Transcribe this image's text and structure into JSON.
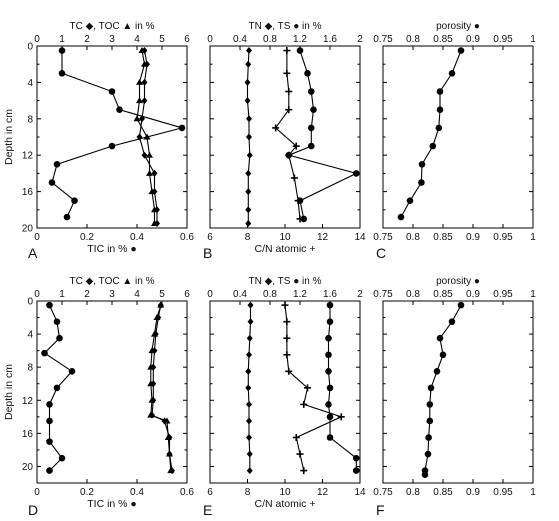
{
  "chart_data": [
    {
      "panel": "A",
      "type": "line",
      "top_label": "TC ◆, TOC ▲ in %",
      "top_axis": {
        "min": 0,
        "max": 6,
        "ticks": [
          "0",
          "1",
          "2",
          "3",
          "4",
          "5",
          "6"
        ]
      },
      "bottom_axis": {
        "min": 0,
        "max": 0.6,
        "ticks": [
          "0",
          "0.2",
          "0.4",
          "0.6"
        ],
        "label": "TIC in % ●"
      },
      "ylabel": "Depth in cm",
      "y_axis": {
        "min": 0,
        "max": 20,
        "ticks": [
          "0",
          "4",
          "8",
          "12",
          "16",
          "20"
        ],
        "inverted": true
      },
      "series": [
        {
          "name": "TC",
          "marker": "diamond",
          "axis": "top",
          "x": [
            4.3,
            4.4,
            4.3,
            4.3,
            4.2,
            4.1,
            4.3,
            4.7,
            4.7,
            4.8,
            4.8
          ],
          "y": [
            0.5,
            2,
            4,
            6,
            8,
            10,
            12,
            14,
            16,
            18,
            19.5
          ]
        },
        {
          "name": "TOC",
          "marker": "triangle",
          "axis": "top",
          "x": [
            4.2,
            4.3,
            4.1,
            4.1,
            4.0,
            4.4,
            4.5,
            4.5,
            4.6,
            4.7,
            4.7
          ],
          "y": [
            0.5,
            2,
            4,
            6,
            8,
            10,
            12,
            14,
            16,
            18,
            19.5
          ]
        },
        {
          "name": "TIC",
          "marker": "circle",
          "axis": "bottom",
          "x": [
            0.1,
            0.1,
            0.3,
            0.33,
            0.58,
            0.3,
            0.08,
            0.06,
            0.15,
            0.12
          ],
          "y": [
            0.5,
            3,
            5,
            7,
            9,
            11,
            13,
            15,
            17,
            18.8
          ]
        }
      ]
    },
    {
      "panel": "B",
      "type": "line",
      "top_label": "TN ◆, TS ● in %",
      "top_axis": {
        "min": 0,
        "max": 2,
        "ticks": [
          "0",
          "0.4",
          "0.8",
          "1.2",
          "1.6",
          "2"
        ]
      },
      "bottom_axis": {
        "min": 6,
        "max": 14,
        "ticks": [
          "6",
          "8",
          "10",
          "12",
          "14"
        ],
        "label": "C/N atomic +"
      },
      "y_axis": {
        "min": 0,
        "max": 20,
        "inverted": true
      },
      "series": [
        {
          "name": "TN",
          "marker": "diamond",
          "axis": "top",
          "x": [
            0.52,
            0.51,
            0.5,
            0.5,
            0.52,
            0.52,
            0.53,
            0.51,
            0.51,
            0.51,
            0.51
          ],
          "y": [
            0.5,
            2,
            4,
            6,
            8,
            10,
            12,
            14,
            16,
            18,
            19.5
          ]
        },
        {
          "name": "TS",
          "marker": "circle",
          "axis": "top",
          "x": [
            1.2,
            1.3,
            1.35,
            1.38,
            1.35,
            1.35,
            1.05,
            1.95,
            1.2,
            1.25
          ],
          "y": [
            0.5,
            3,
            5,
            7,
            9,
            11,
            12,
            14,
            17,
            19
          ]
        },
        {
          "name": "C/N",
          "marker": "plus",
          "axis": "bottom",
          "x": [
            10.1,
            10.1,
            10.2,
            10.2,
            9.5,
            10.6,
            10.2,
            10.5,
            10.7,
            10.8
          ],
          "y": [
            0.5,
            3,
            5,
            7,
            9,
            11,
            12,
            14.5,
            17,
            19
          ]
        }
      ]
    },
    {
      "panel": "C",
      "type": "line",
      "top_label": "porosity ●",
      "bottom_axis": {
        "min": 0.75,
        "max": 1,
        "ticks": [
          "0.75",
          "0.8",
          "0.85",
          "0.9",
          "0.95",
          "1"
        ]
      },
      "y_axis": {
        "min": 0,
        "max": 20,
        "inverted": true
      },
      "series": [
        {
          "name": "porosity",
          "marker": "circle",
          "axis": "bottom",
          "x": [
            0.88,
            0.865,
            0.845,
            0.845,
            0.843,
            0.833,
            0.815,
            0.814,
            0.795,
            0.78
          ],
          "y": [
            0.5,
            3,
            5,
            7,
            9,
            11,
            13,
            15,
            17,
            18.8
          ]
        }
      ]
    },
    {
      "panel": "D",
      "type": "line",
      "top_label": "TC ◆, TOC ▲ in %",
      "top_axis": {
        "min": 0,
        "max": 6,
        "ticks": [
          "0",
          "1",
          "2",
          "3",
          "4",
          "5",
          "6"
        ]
      },
      "bottom_axis": {
        "min": 0,
        "max": 0.6,
        "ticks": [
          "0",
          "0.2",
          "0.4",
          "0.6"
        ],
        "label": "TIC in % ●"
      },
      "ylabel": "Depth in cm",
      "y_axis": {
        "min": 0,
        "max": 22,
        "ticks": [
          "0",
          "4",
          "8",
          "12",
          "16",
          "20"
        ],
        "inverted": true
      },
      "series": [
        {
          "name": "TC",
          "marker": "diamond",
          "axis": "top",
          "x": [
            4.95,
            4.85,
            4.75,
            4.7,
            4.65,
            4.65,
            4.65,
            4.6,
            5.1,
            5.3,
            5.3,
            5.4
          ],
          "y": [
            0.5,
            2,
            4,
            6,
            8,
            10,
            12,
            13.8,
            14.5,
            16.5,
            18.5,
            20.5
          ]
        },
        {
          "name": "TOC",
          "marker": "triangle",
          "axis": "top",
          "x": [
            4.95,
            4.8,
            4.7,
            4.6,
            4.55,
            4.55,
            4.6,
            4.55,
            5.2,
            5.25,
            5.3,
            5.35
          ],
          "y": [
            0.5,
            2,
            4,
            6,
            8,
            10,
            12,
            13.8,
            14.5,
            16.5,
            18.5,
            20.5
          ]
        },
        {
          "name": "TIC",
          "marker": "circle",
          "axis": "bottom",
          "x": [
            0.05,
            0.08,
            0.09,
            0.03,
            0.14,
            0.08,
            0.05,
            0.05,
            0.05,
            0.1,
            0.05
          ],
          "y": [
            0.5,
            2.5,
            4.5,
            6.3,
            8.5,
            10.5,
            12.5,
            14.5,
            17,
            19,
            20.5
          ]
        }
      ]
    },
    {
      "panel": "E",
      "type": "line",
      "top_label": "TN ◆, TS ● in %",
      "top_axis": {
        "min": 0,
        "max": 2,
        "ticks": [
          "0",
          "0.4",
          "0.8",
          "1.2",
          "1.6",
          "2"
        ]
      },
      "bottom_axis": {
        "min": 6,
        "max": 14,
        "ticks": [
          "6",
          "8",
          "10",
          "12",
          "14"
        ],
        "label": "C/N atomic +"
      },
      "y_axis": {
        "min": 0,
        "max": 22,
        "inverted": true
      },
      "series": [
        {
          "name": "TN",
          "marker": "diamond",
          "axis": "top",
          "x": [
            0.54,
            0.54,
            0.53,
            0.52,
            0.51,
            0.51,
            0.52,
            0.52,
            0.52,
            0.53,
            0.53
          ],
          "y": [
            0.5,
            2.5,
            4.5,
            6.5,
            8.5,
            10.5,
            12.5,
            14.5,
            16.5,
            18.5,
            20.5
          ]
        },
        {
          "name": "TS",
          "marker": "circle",
          "axis": "top",
          "x": [
            1.6,
            1.6,
            1.58,
            1.58,
            1.58,
            1.6,
            1.58,
            1.6,
            1.6,
            1.95,
            1.95
          ],
          "y": [
            0.5,
            2.5,
            4.5,
            6.5,
            8.5,
            10.5,
            12.5,
            14,
            16.5,
            19,
            20.5
          ]
        },
        {
          "name": "C/N",
          "marker": "plus",
          "axis": "bottom",
          "x": [
            10,
            10.1,
            10.1,
            10.1,
            10.2,
            11.2,
            11,
            13,
            10.6,
            10.8,
            11
          ],
          "y": [
            0.5,
            2.5,
            4.5,
            6.5,
            8.5,
            10.5,
            12.5,
            14,
            16.5,
            18.5,
            20.5
          ]
        }
      ]
    },
    {
      "panel": "F",
      "type": "line",
      "top_label": "porosity ●",
      "bottom_axis": {
        "min": 0.75,
        "max": 1,
        "ticks": [
          "0.75",
          "0.8",
          "0.85",
          "0.9",
          "0.95",
          "1"
        ]
      },
      "y_axis": {
        "min": 0,
        "max": 22,
        "inverted": true
      },
      "series": [
        {
          "name": "porosity",
          "marker": "circle",
          "axis": "bottom",
          "x": [
            0.88,
            0.865,
            0.845,
            0.85,
            0.84,
            0.83,
            0.828,
            0.828,
            0.826,
            0.825,
            0.82,
            0.82
          ],
          "y": [
            0.5,
            2.5,
            4.5,
            6.5,
            8.5,
            10.5,
            12.5,
            14.5,
            16.5,
            18.5,
            20.5,
            21
          ]
        }
      ]
    }
  ]
}
